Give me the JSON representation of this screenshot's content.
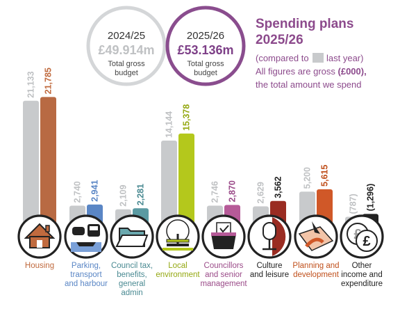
{
  "header": {
    "title_line1": "Spending plans",
    "title_line2": "2025/26",
    "note_prefix": "(compared to",
    "note_suffix": "last year)",
    "note_line2_a": "All figures are gross",
    "note_line2_b": "(£000),",
    "note_line3": "the total amount we spend"
  },
  "budgets": {
    "prev": {
      "year": "2024/25",
      "amount": "£49.914m",
      "label1": "Total gross",
      "label2": "budget"
    },
    "cur": {
      "year": "2025/26",
      "amount": "£53.136m",
      "label1": "Total gross",
      "label2": "budget"
    }
  },
  "colors": {
    "prev_bar": "#c8cacc",
    "title": "#8c4a8c",
    "categories": [
      "#b86a43",
      "#5a86c5",
      "#5a9aa2",
      "#b4c81c",
      "#b65a98",
      "#9a2c22",
      "#d05828",
      "#222222"
    ],
    "label_colors": [
      "#c06a3e",
      "#5a86c5",
      "#4a8a92",
      "#94a812",
      "#9a4a88",
      "#222222",
      "#c0501c",
      "#222222"
    ]
  },
  "icons": [
    "house-icon",
    "car-bus-boat-icon",
    "folder-icon",
    "tree-bench-icon",
    "ballot-box-icon",
    "microphone-icon",
    "map-pin-icon",
    "pound-coins-icon"
  ],
  "chart_data": {
    "type": "bar",
    "categories": [
      [
        "Housing"
      ],
      [
        "Parking,",
        "transport",
        "and harbour"
      ],
      [
        "Council tax,",
        "benefits,",
        "general",
        "admin"
      ],
      [
        "Local",
        "environment"
      ],
      [
        "Councillors",
        "and senior",
        "management"
      ],
      [
        "Culture",
        "and leisure"
      ],
      [
        "Planning and",
        "development"
      ],
      [
        "Other",
        "income and",
        "expenditure"
      ]
    ],
    "series": [
      {
        "name": "2024/25",
        "values": [
          21133,
          2740,
          2109,
          14144,
          2746,
          2629,
          5200,
          -787
        ],
        "labels": [
          "21,133",
          "2,740",
          "2,109",
          "14,144",
          "2,746",
          "2,629",
          "5,200",
          "(787)"
        ]
      },
      {
        "name": "2025/26",
        "values": [
          21785,
          2941,
          2281,
          15378,
          2870,
          3562,
          5615,
          -1296
        ],
        "labels": [
          "21,785",
          "2,941",
          "2,281",
          "15,378",
          "2,870",
          "3,562",
          "5,615",
          "(1,296)"
        ]
      }
    ],
    "unit": "£000"
  }
}
